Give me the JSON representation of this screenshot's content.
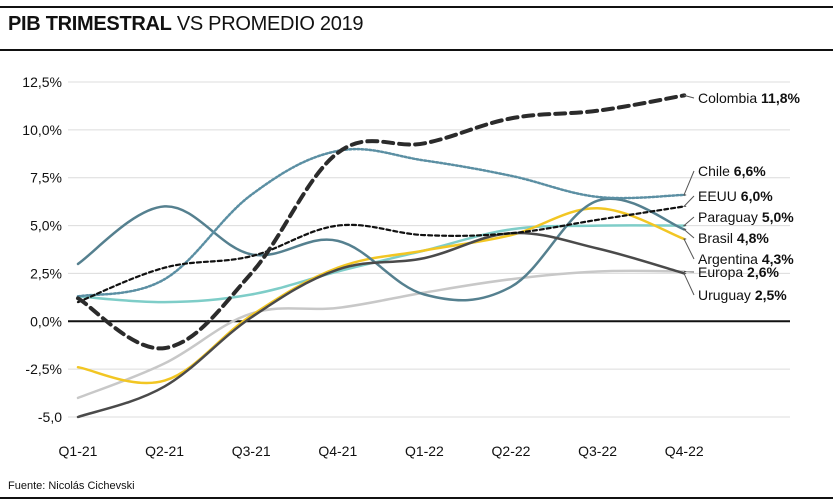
{
  "header": {
    "title_bold": "PIB TRIMESTRAL",
    "title_rest": "VS PROMEDIO 2019"
  },
  "source": "Fuente: Nicolás Cichevski",
  "chart_data": {
    "type": "line",
    "title": "PIB TRIMESTRAL VS PROMEDIO 2019",
    "xlabel": "",
    "ylabel": "",
    "categories": [
      "Q1-21",
      "Q2-21",
      "Q3-21",
      "Q4-21",
      "Q1-22",
      "Q2-22",
      "Q3-22",
      "Q4-22"
    ],
    "ylim": [
      -5.0,
      12.5
    ],
    "yticks": [
      12.5,
      10.0,
      7.5,
      5.0,
      2.5,
      0.0,
      -2.5,
      -5.0
    ],
    "ytick_labels": [
      "12,5%",
      "10,0%",
      "7,5%",
      "5,0%",
      "2,5%",
      "0,0%",
      "-2,5%",
      "-5,0"
    ],
    "grid": true,
    "legend": "direct labels at line ends (right)",
    "series": [
      {
        "name": "Colombia",
        "end_label": "11,8%",
        "color": "#2b2b2b",
        "style": "dash-thick",
        "values": [
          1.2,
          -1.4,
          2.5,
          8.8,
          9.3,
          10.6,
          11.0,
          11.8
        ]
      },
      {
        "name": "Chile",
        "end_label": "6,6%",
        "color": "#5b8fa3",
        "style": "dotted",
        "values": [
          1.3,
          2.2,
          6.6,
          8.9,
          8.4,
          7.6,
          6.5,
          6.6
        ]
      },
      {
        "name": "EEUU",
        "end_label": "6,0%",
        "color": "#111111",
        "style": "dash-thin",
        "values": [
          1.0,
          2.8,
          3.4,
          5.0,
          4.5,
          4.6,
          5.3,
          6.0
        ]
      },
      {
        "name": "Paraguay",
        "end_label": "5,0%",
        "color": "#7ecdc8",
        "style": "solid",
        "values": [
          1.3,
          1.0,
          1.4,
          2.6,
          3.7,
          4.8,
          5.0,
          5.0
        ]
      },
      {
        "name": "Brasil",
        "end_label": "4,8%",
        "color": "#55808f",
        "style": "solid",
        "values": [
          3.0,
          6.0,
          3.5,
          4.2,
          1.4,
          1.8,
          6.3,
          4.8
        ]
      },
      {
        "name": "Argentina",
        "end_label": "4,3%",
        "color": "#f2c623",
        "style": "solid",
        "values": [
          -2.4,
          -3.1,
          0.3,
          2.8,
          3.7,
          4.5,
          5.9,
          4.3
        ]
      },
      {
        "name": "Europa",
        "end_label": "2,6%",
        "color": "#c8c8c8",
        "style": "solid",
        "values": [
          -4.0,
          -2.2,
          0.4,
          0.7,
          1.5,
          2.2,
          2.6,
          2.6
        ]
      },
      {
        "name": "Uruguay",
        "end_label": "2,5%",
        "color": "#4a4a4a",
        "style": "solid",
        "values": [
          -5.0,
          -3.4,
          0.2,
          2.7,
          3.3,
          4.6,
          3.8,
          2.5
        ]
      }
    ]
  }
}
